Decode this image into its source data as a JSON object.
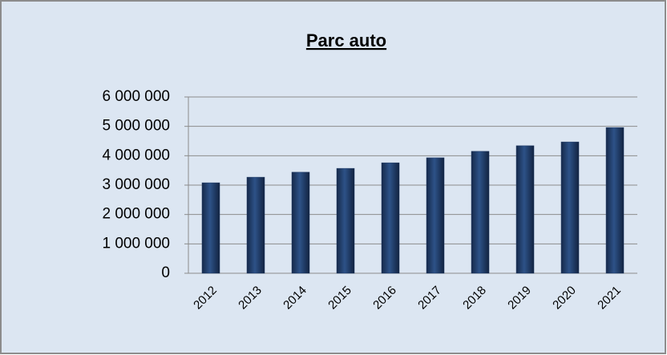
{
  "chart_data": {
    "type": "bar",
    "title": "Parc auto",
    "categories": [
      "2012",
      "2013",
      "2014",
      "2015",
      "2016",
      "2017",
      "2018",
      "2019",
      "2020",
      "2021"
    ],
    "values": [
      3080000,
      3270000,
      3440000,
      3570000,
      3760000,
      3930000,
      4150000,
      4340000,
      4470000,
      4960000
    ],
    "color": "#1f3864",
    "ylim": [
      0,
      6000000
    ],
    "yticks": [
      {
        "value": 0,
        "label": "0"
      },
      {
        "value": 1000000,
        "label": "1 000 000"
      },
      {
        "value": 2000000,
        "label": "2 000 000"
      },
      {
        "value": 3000000,
        "label": "3 000 000"
      },
      {
        "value": 4000000,
        "label": "4 000 000"
      },
      {
        "value": 5000000,
        "label": "5 000 000"
      },
      {
        "value": 6000000,
        "label": "6 000 000"
      }
    ],
    "grid": true
  }
}
